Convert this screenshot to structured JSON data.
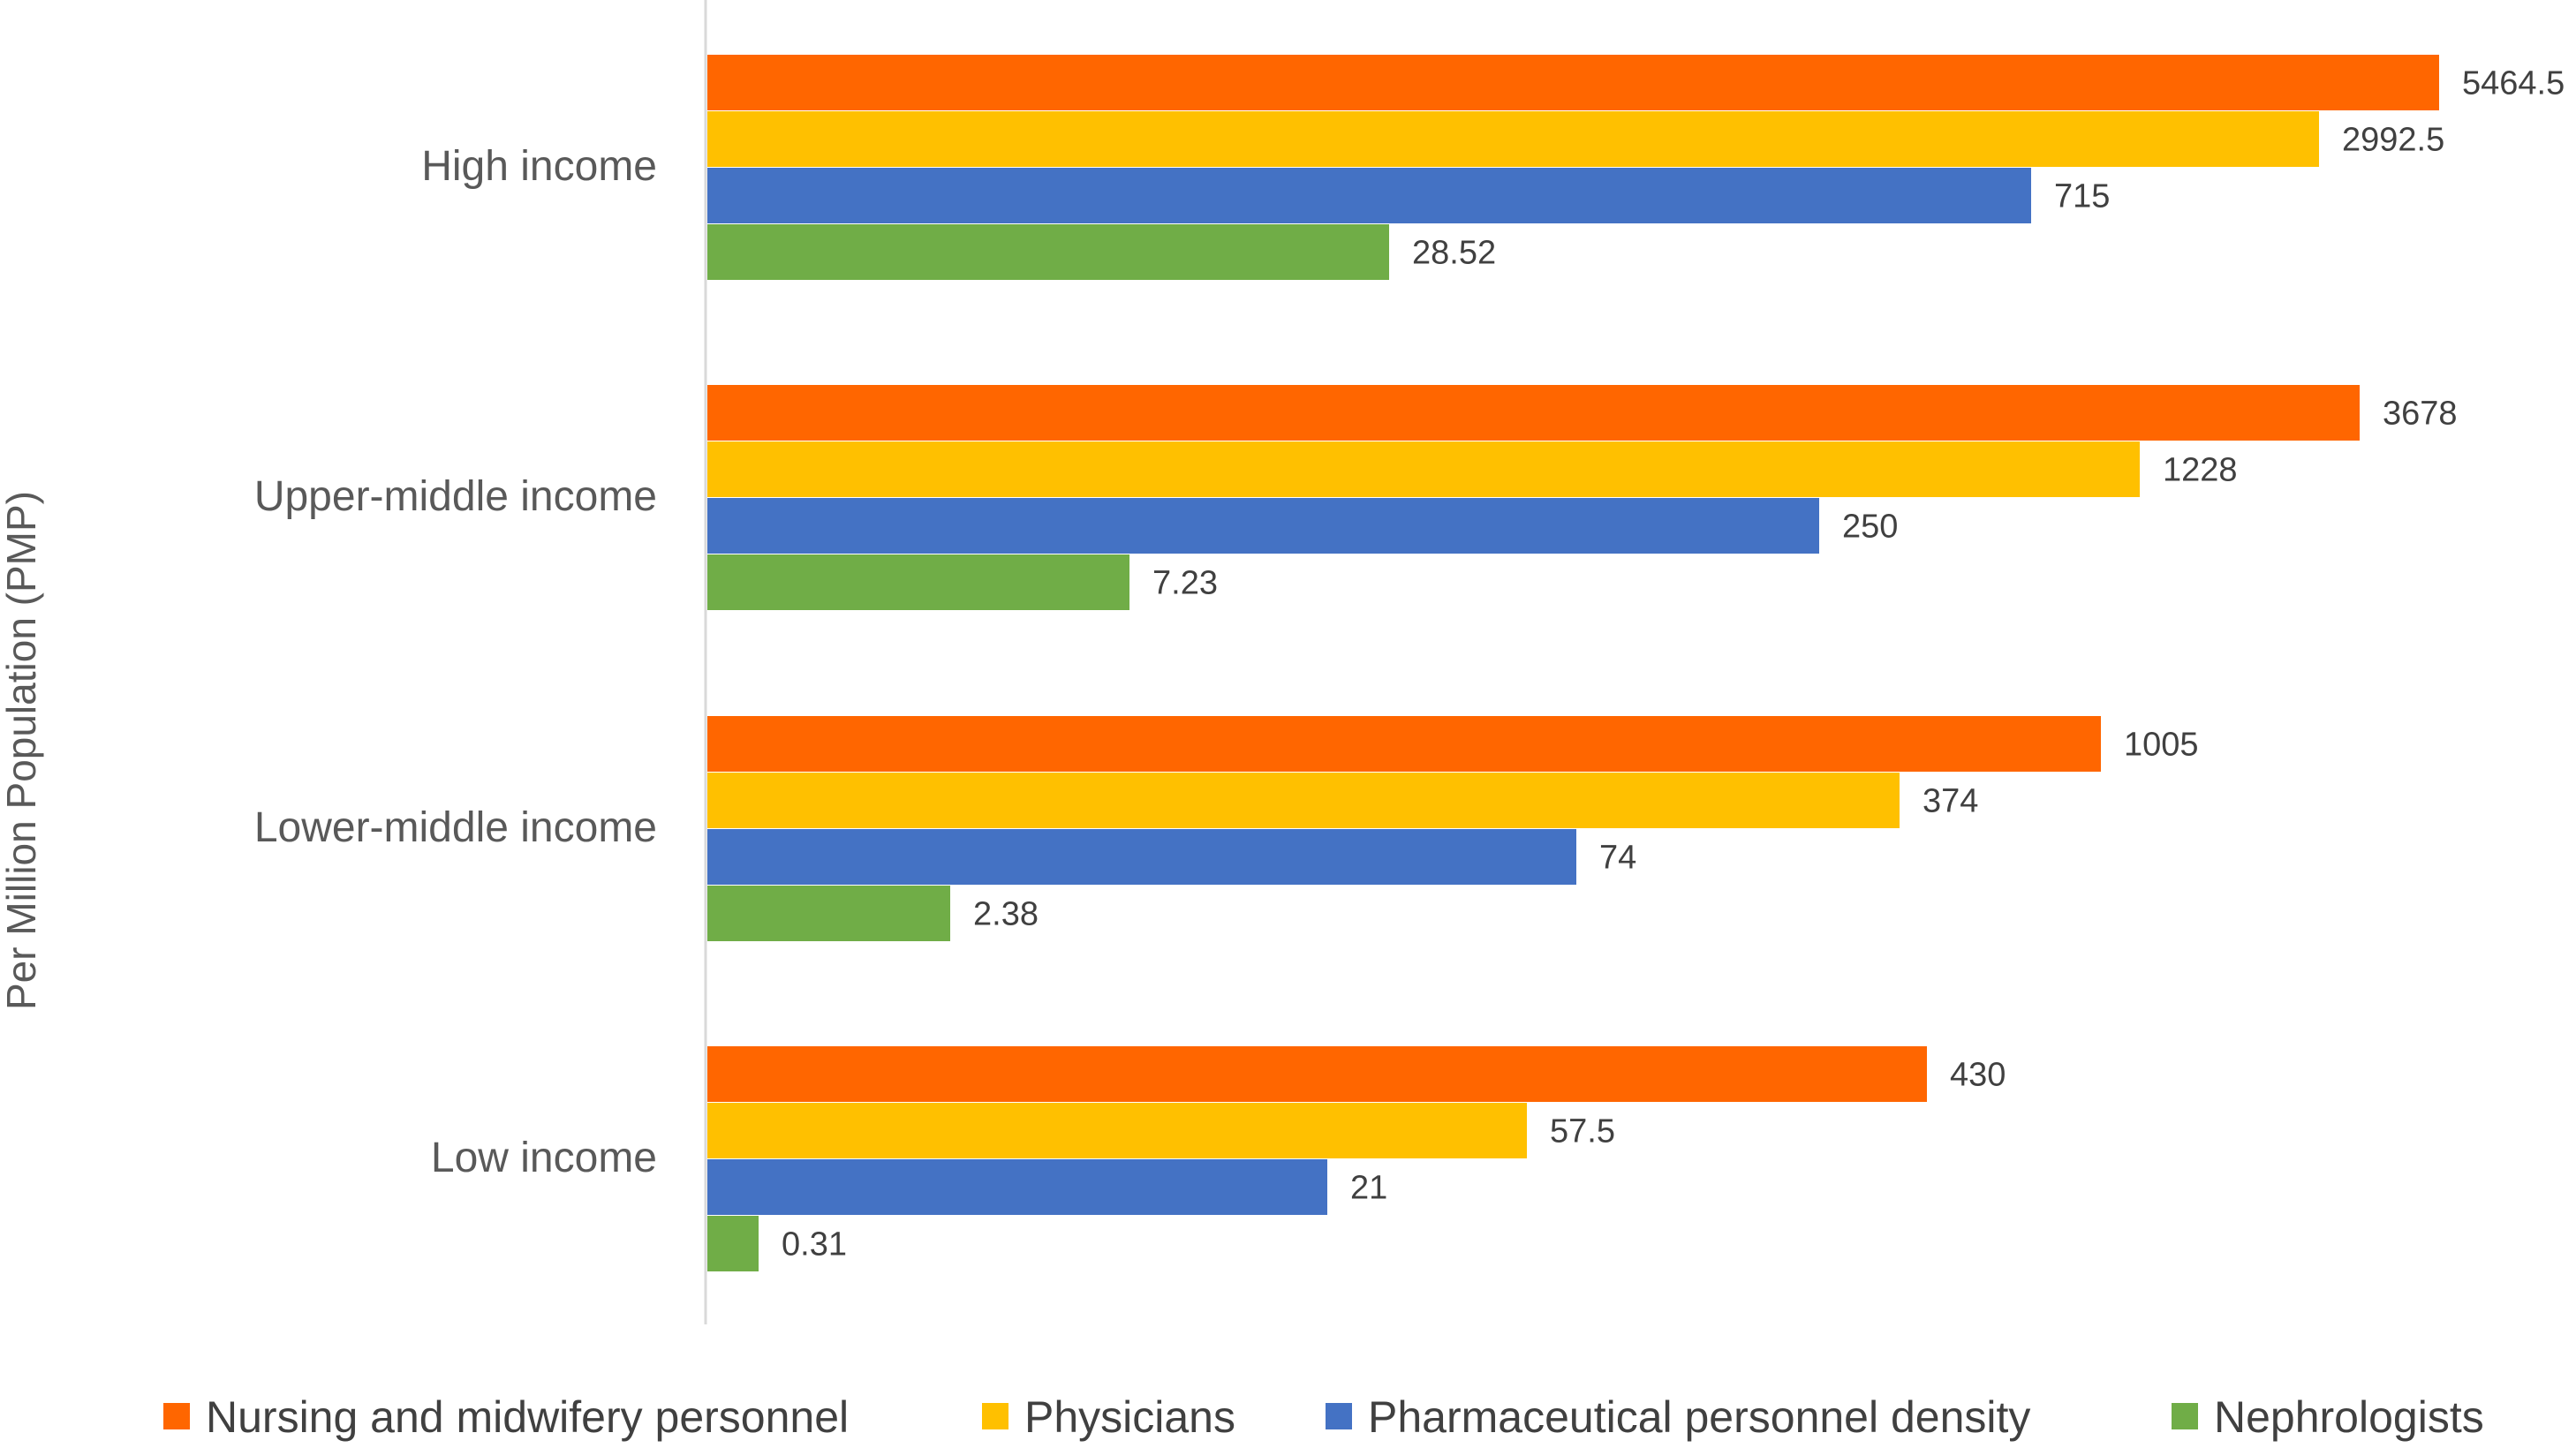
{
  "chart_data": {
    "type": "bar",
    "orientation": "horizontal",
    "categories": [
      "High income",
      "Upper-middle income",
      "Lower-middle income",
      "Low income"
    ],
    "series": [
      {
        "name": "Nursing and midwifery personnel",
        "color": "#FF6600",
        "values": [
          5464.5,
          3678,
          1005,
          430
        ],
        "labels": [
          "5464.5",
          "3678",
          "1005",
          "430"
        ]
      },
      {
        "name": "Physicians",
        "color": "#FFC000",
        "values": [
          2992.5,
          1228,
          374,
          57.5
        ],
        "labels": [
          "2992.5",
          "1228",
          "374",
          "57.5"
        ]
      },
      {
        "name": "Pharmaceutical personnel density",
        "color": "#4472C4",
        "values": [
          715,
          250,
          74,
          21
        ],
        "labels": [
          "715",
          "250",
          "74",
          "21"
        ]
      },
      {
        "name": "Nephrologists",
        "color": "#70AD47",
        "values": [
          28.52,
          7.23,
          2.38,
          0.31
        ],
        "labels": [
          "28.52",
          "7.23",
          "2.38",
          "0.31"
        ]
      }
    ],
    "ylabel": "Per Million Population (PMP)",
    "scale": "nonlinear",
    "grid": false,
    "legend_position": "bottom"
  }
}
